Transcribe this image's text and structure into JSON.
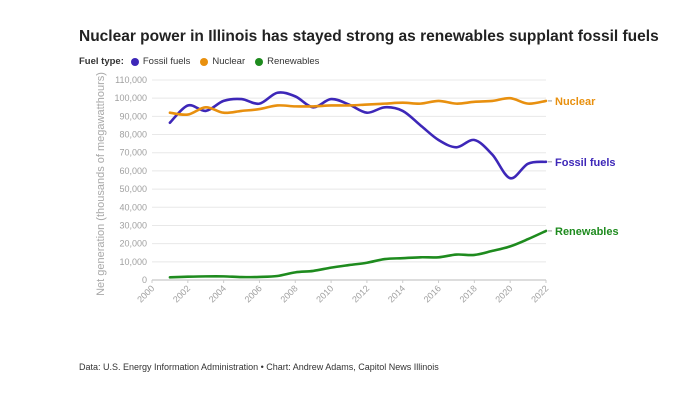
{
  "chart_data": {
    "type": "line",
    "title": "Nuclear power in Illinois has stayed strong as renewables supplant fossil fuels",
    "legend_title": "Fuel type:",
    "legend_placement": "top-left",
    "ylabel": "Net generation (thousands of megawatthours)",
    "xlabel": "",
    "xlim": [
      2000,
      2022
    ],
    "ylim": [
      0,
      110000
    ],
    "x_ticks": [
      "2000",
      "2002",
      "2004",
      "2006",
      "2008",
      "2010",
      "2012",
      "2014",
      "2016",
      "2018",
      "2020",
      "2022"
    ],
    "y_ticks": [
      "0",
      "10,000",
      "20,000",
      "30,000",
      "40,000",
      "50,000",
      "60,000",
      "70,000",
      "80,000",
      "90,000",
      "100,000",
      "110,000"
    ],
    "grid": true,
    "x": [
      2001,
      2002,
      2003,
      2004,
      2005,
      2006,
      2007,
      2008,
      2009,
      2010,
      2011,
      2012,
      2013,
      2014,
      2015,
      2016,
      2017,
      2018,
      2019,
      2020,
      2021,
      2022
    ],
    "series": [
      {
        "name": "Fossil fuels",
        "color": "#3d27b8",
        "end_label": "Fossil fuels",
        "values": [
          86500,
          96000,
          93000,
          98500,
          99500,
          97000,
          103000,
          101000,
          95000,
          99500,
          96500,
          92000,
          95000,
          93000,
          85000,
          77000,
          73000,
          77000,
          69000,
          56000,
          64000,
          65000
        ]
      },
      {
        "name": "Nuclear",
        "color": "#e8900f",
        "end_label": "Nuclear",
        "values": [
          92000,
          91000,
          95000,
          92000,
          93000,
          94000,
          96000,
          95500,
          95500,
          96000,
          96000,
          96500,
          97000,
          97500,
          97000,
          98500,
          97000,
          98000,
          98500,
          100000,
          97000,
          98500
        ]
      },
      {
        "name": "Renewables",
        "color": "#1e8b1e",
        "end_label": "Renewables",
        "values": [
          1500,
          1800,
          2000,
          2000,
          1600,
          1700,
          2200,
          4200,
          5000,
          6800,
          8200,
          9500,
          11500,
          12000,
          12500,
          12500,
          14000,
          13800,
          16000,
          18500,
          22500,
          27000
        ]
      }
    ]
  },
  "footer": "Data: U.S. Energy Information Administration • Chart: Andrew Adams, Capitol News Illinois"
}
